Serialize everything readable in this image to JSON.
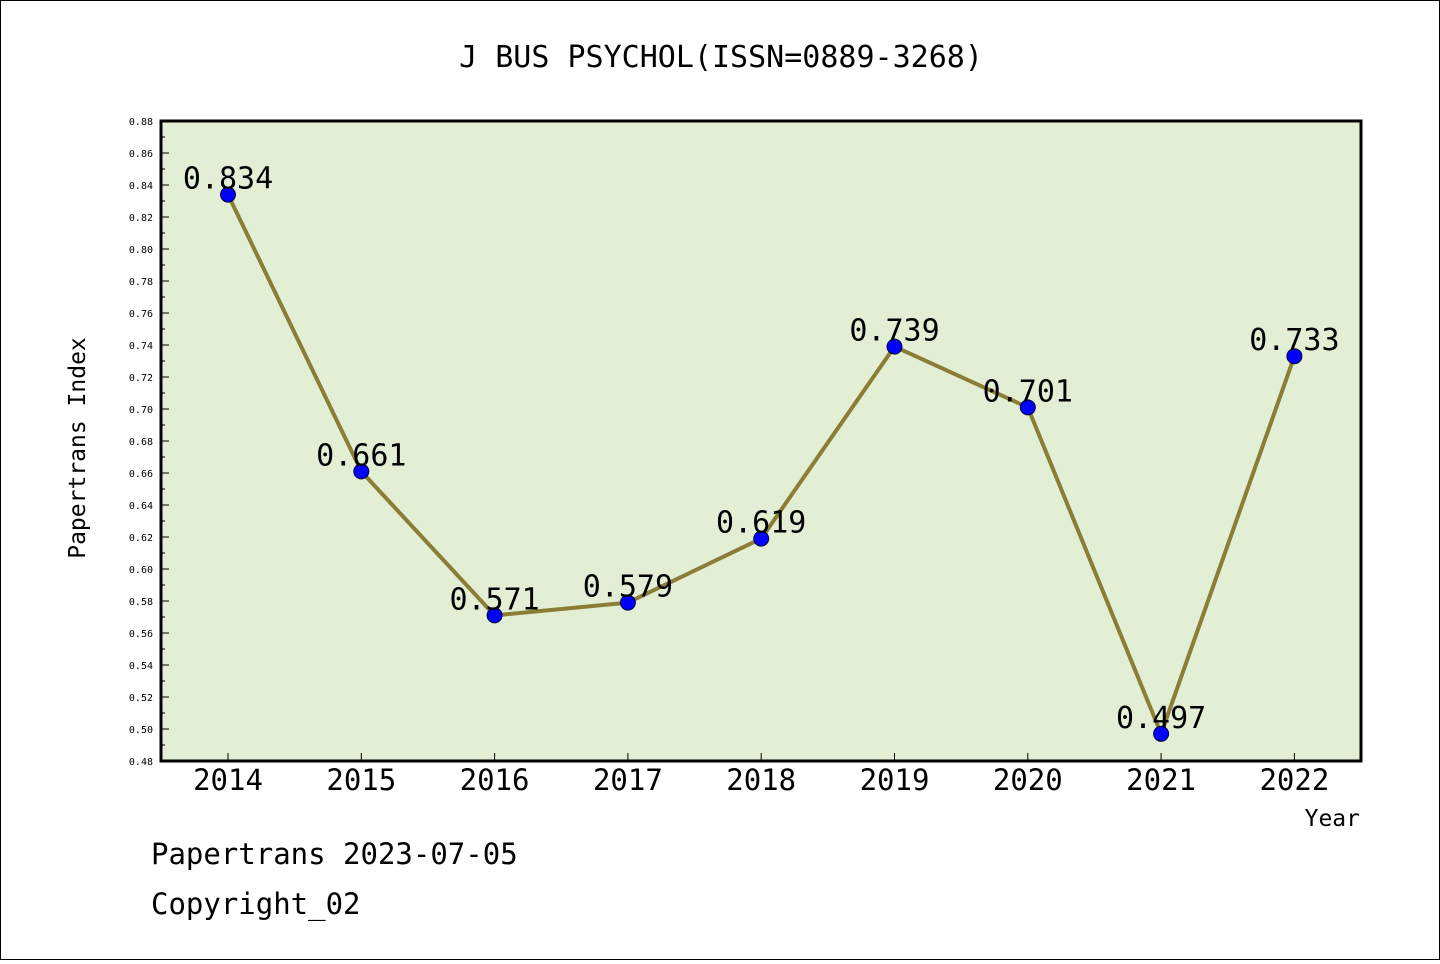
{
  "chart_data": {
    "type": "line",
    "title": "J BUS PSYCHOL(ISSN=0889-3268)",
    "xlabel": "Year",
    "ylabel": "Papertrans Index",
    "categories": [
      "2014",
      "2015",
      "2016",
      "2017",
      "2018",
      "2019",
      "2020",
      "2021",
      "2022"
    ],
    "values": [
      0.834,
      0.661,
      0.571,
      0.579,
      0.619,
      0.739,
      0.701,
      0.497,
      0.733
    ],
    "data_labels": [
      "0.834",
      "0.661",
      "0.571",
      "0.579",
      "0.619",
      "0.739",
      "0.701",
      "0.497",
      "0.733"
    ],
    "ylim": [
      0.48,
      0.88
    ],
    "yticks": [
      "0.48",
      "0.50",
      "0.52",
      "0.54",
      "0.56",
      "0.58",
      "0.60",
      "0.62",
      "0.64",
      "0.66",
      "0.68",
      "0.70",
      "0.72",
      "0.74",
      "0.76",
      "0.78",
      "0.80",
      "0.82",
      "0.84",
      "0.86",
      "0.88"
    ],
    "grid": false,
    "colors": {
      "plot_background": "#e2efd5",
      "line": "#8b7d35",
      "marker": "#0000ff"
    }
  },
  "footer": {
    "date_line": "Papertrans 2023-07-05",
    "copyright": "Copyright_02"
  }
}
